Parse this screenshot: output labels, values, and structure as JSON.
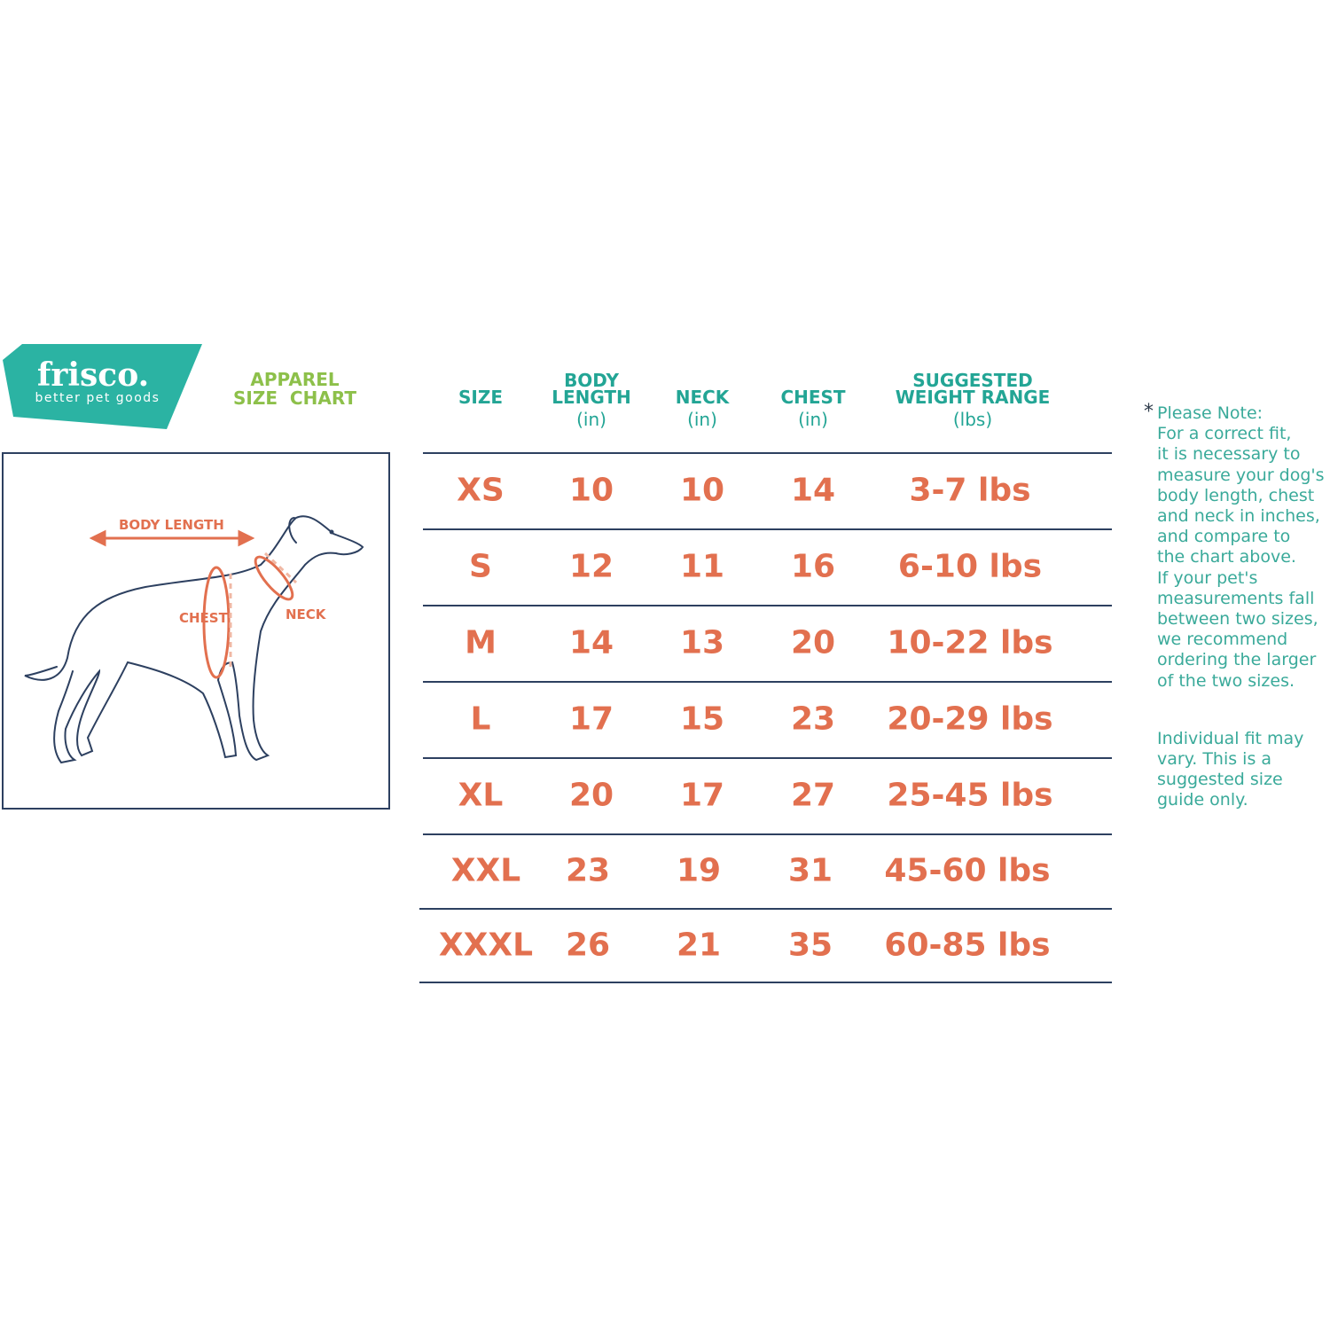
{
  "brand": {
    "name": "frisco.",
    "tagline": "better pet goods",
    "color": "#2bb3a3"
  },
  "title": {
    "line1": "APPAREL",
    "line2": "SIZE  CHART",
    "color": "#8dc04a"
  },
  "diagram": {
    "labels": {
      "body_length": "BODY LENGTH",
      "chest": "CHEST",
      "neck": "NECK"
    },
    "accent": "#e2704f",
    "outline": "#2d4060"
  },
  "table": {
    "headers": [
      {
        "title": "SIZE",
        "unit": ""
      },
      {
        "title": "BODY\nLENGTH",
        "unit": "(in)"
      },
      {
        "title": "NECK",
        "unit": "(in)"
      },
      {
        "title": "CHEST",
        "unit": "(in)"
      },
      {
        "title": "SUGGESTED\nWEIGHT RANGE",
        "unit": "(lbs)"
      }
    ],
    "rows": [
      [
        "XS",
        "10",
        "10",
        "14",
        "3-7 lbs"
      ],
      [
        "S",
        "12",
        "11",
        "16",
        "6-10 lbs"
      ],
      [
        "M",
        "14",
        "13",
        "20",
        "10-22 lbs"
      ],
      [
        "L",
        "17",
        "15",
        "23",
        "20-29 lbs"
      ],
      [
        "XL",
        "20",
        "17",
        "27",
        "25-45 lbs"
      ],
      [
        "XXL",
        "23",
        "19",
        "31",
        "45-60 lbs"
      ],
      [
        "XXXL",
        "26",
        "21",
        "35",
        "60-85 lbs"
      ]
    ],
    "header_color": "#23a595",
    "value_color": "#e2704f"
  },
  "note": {
    "star": "*",
    "lines": [
      "Please Note:",
      "For a correct fit,",
      "it is necessary to",
      "measure your dog's",
      "body length, chest",
      "and neck in inches,",
      "and compare to",
      "the chart above.",
      "If your pet's",
      "measurements fall",
      "between two sizes,",
      "we recommend",
      "ordering the larger",
      "of the two sizes."
    ],
    "lines2": [
      "Individual fit may",
      "vary. This is a",
      "suggested size",
      "guide only."
    ]
  }
}
